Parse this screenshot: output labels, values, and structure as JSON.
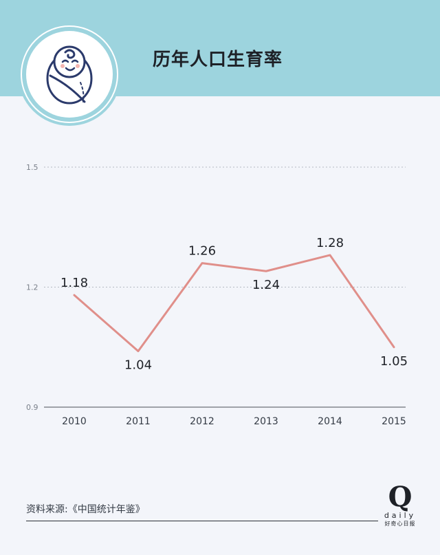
{
  "header": {
    "title": "历年人口生育率",
    "bg_color": "#9dd4de"
  },
  "footer": {
    "source": "资料来源:《中国统计年鉴》",
    "logo_letter": "Q",
    "logo_word": "daily",
    "logo_cn": "好奇心日报"
  },
  "colors": {
    "line": "#e08f8a",
    "grid": "#b4b9c2",
    "baseline": "#6b7078",
    "text": "#1e2127"
  },
  "chart_data": {
    "type": "line",
    "title": "历年人口生育率",
    "xlabel": "",
    "ylabel": "",
    "categories": [
      "2010",
      "2011",
      "2012",
      "2013",
      "2014",
      "2015"
    ],
    "values": [
      1.18,
      1.04,
      1.26,
      1.24,
      1.28,
      1.05
    ],
    "value_labels": [
      "1.18",
      "1.04",
      "1.26",
      "1.24",
      "1.28",
      "1.05"
    ],
    "y_ticks": [
      "1.5",
      "1.2",
      "0.9"
    ],
    "ylim": [
      0.9,
      1.5
    ],
    "grid": "horizontal-dotted",
    "legend": "none"
  }
}
